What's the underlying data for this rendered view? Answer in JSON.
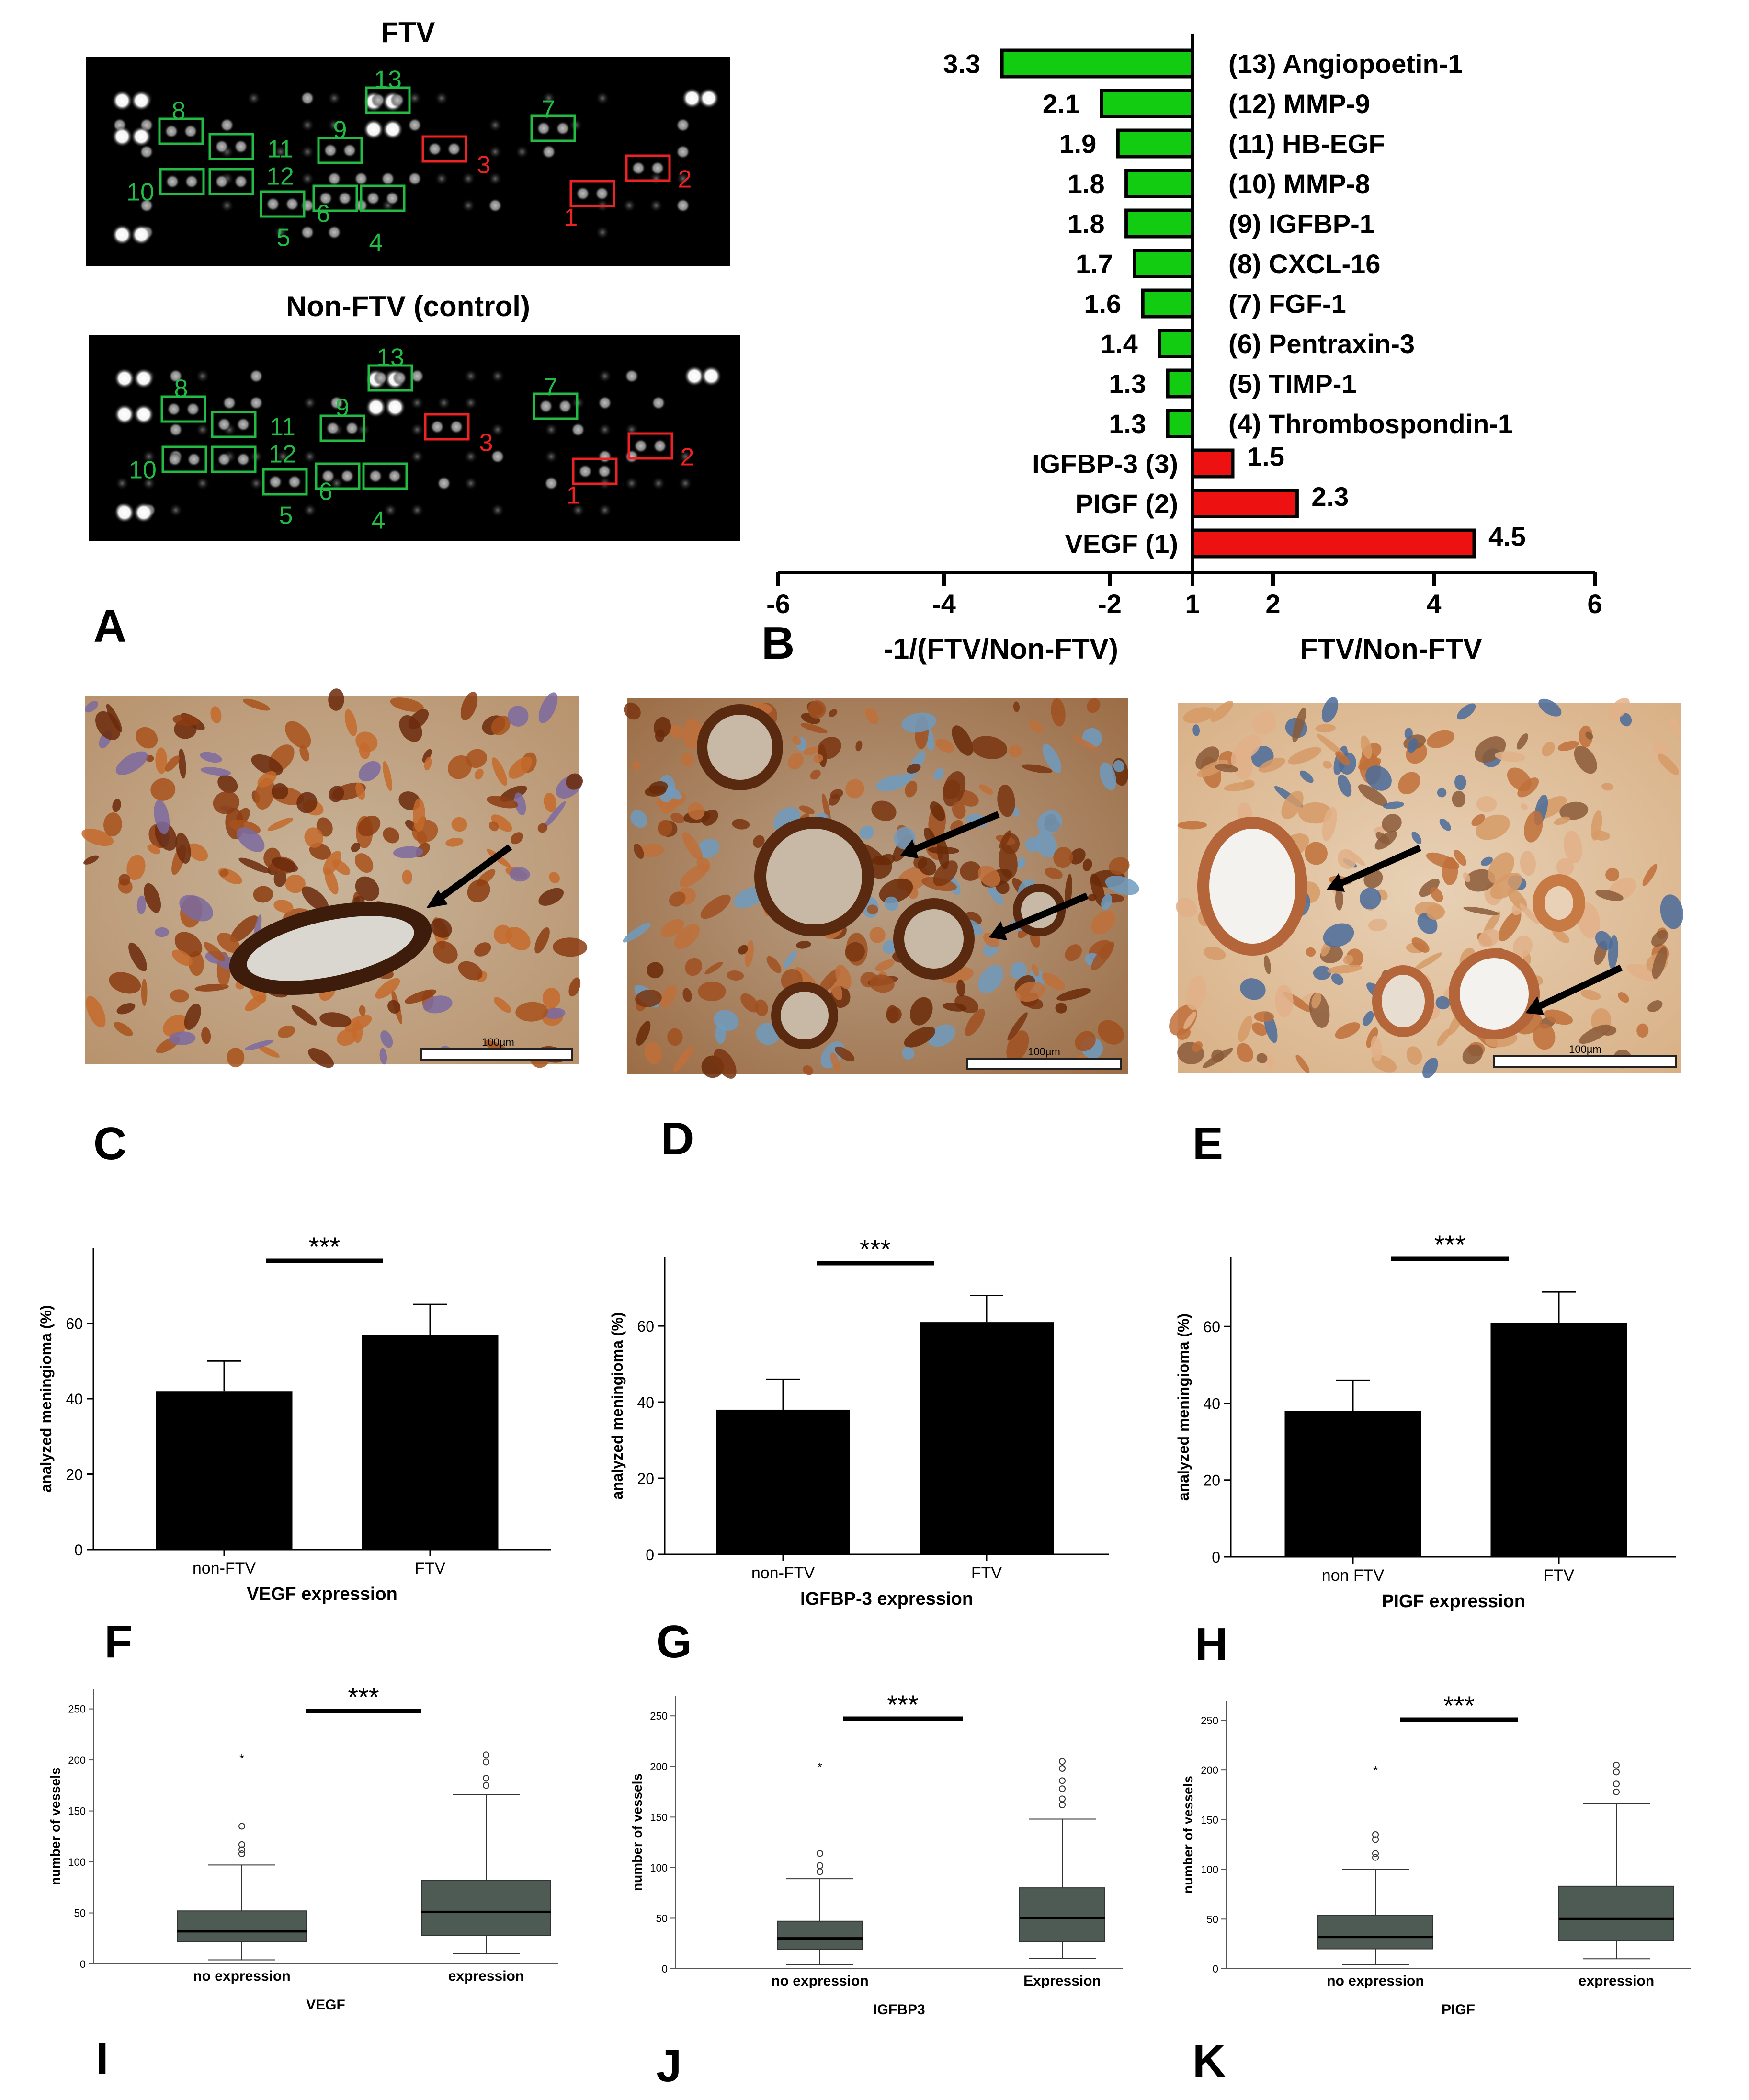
{
  "panels": {
    "a": {
      "letter": "A",
      "arrays": [
        {
          "title": "FTV"
        },
        {
          "title": "Non-FTV (control)"
        }
      ]
    },
    "b": {
      "letter": "B"
    },
    "c": {
      "letter": "C",
      "scale_label": "100µm"
    },
    "d": {
      "letter": "D",
      "scale_label": "100µm"
    },
    "e": {
      "letter": "E",
      "scale_label": "100µm"
    },
    "f": {
      "letter": "F"
    },
    "g": {
      "letter": "G"
    },
    "h": {
      "letter": "H"
    },
    "i": {
      "letter": "I"
    },
    "j": {
      "letter": "J"
    },
    "k": {
      "letter": "K"
    }
  },
  "significance": "***",
  "colors": {
    "increased": "#ee1111",
    "decreased": "#11cc11",
    "bar": "#000000",
    "box": "#4e5b54",
    "array_bg": "#000000",
    "spot_label_green": "#22bb44",
    "spot_label_red": "#ee2222"
  },
  "chart_data": [
    {
      "id": "A-FTV",
      "type": "table",
      "title": "FTV",
      "spot_labels": [
        {
          "label": "1",
          "color": "red"
        },
        {
          "label": "2",
          "color": "red"
        },
        {
          "label": "3",
          "color": "red"
        },
        {
          "label": "4",
          "color": "green"
        },
        {
          "label": "5",
          "color": "green"
        },
        {
          "label": "6",
          "color": "green"
        },
        {
          "label": "7",
          "color": "green"
        },
        {
          "label": "8",
          "color": "green"
        },
        {
          "label": "9",
          "color": "green"
        },
        {
          "label": "10",
          "color": "green"
        },
        {
          "label": "11",
          "color": "green"
        },
        {
          "label": "12",
          "color": "green"
        },
        {
          "label": "13",
          "color": "green"
        }
      ]
    },
    {
      "id": "A-NonFTV",
      "type": "table",
      "title": "Non-FTV (control)",
      "spot_labels": [
        {
          "label": "1",
          "color": "red"
        },
        {
          "label": "2",
          "color": "red"
        },
        {
          "label": "3",
          "color": "red"
        },
        {
          "label": "4",
          "color": "green"
        },
        {
          "label": "5",
          "color": "green"
        },
        {
          "label": "6",
          "color": "green"
        },
        {
          "label": "7",
          "color": "green"
        },
        {
          "label": "8",
          "color": "green"
        },
        {
          "label": "9",
          "color": "green"
        },
        {
          "label": "10",
          "color": "green"
        },
        {
          "label": "11",
          "color": "green"
        },
        {
          "label": "12",
          "color": "green"
        },
        {
          "label": "13",
          "color": "green"
        }
      ]
    },
    {
      "id": "B",
      "type": "bar",
      "orientation": "horizontal",
      "xlabel_left": "-1/(FTV/Non-FTV)",
      "xlabel_right": "FTV/Non-FTV",
      "xlim": [
        -6,
        6
      ],
      "xticks": [
        "-6",
        "-4",
        "-2",
        "1",
        "2",
        "4",
        "6"
      ],
      "bars": [
        {
          "label": "(13) Angiopoetin-1",
          "value": -3.3,
          "value_label": "3.3"
        },
        {
          "label": "(12) MMP-9",
          "value": -2.1,
          "value_label": "2.1"
        },
        {
          "label": "(11) HB-EGF",
          "value": -1.9,
          "value_label": "1.9"
        },
        {
          "label": "(10) MMP-8",
          "value": -1.8,
          "value_label": "1.8"
        },
        {
          "label": "(9) IGFBP-1",
          "value": -1.8,
          "value_label": "1.8"
        },
        {
          "label": "(8) CXCL-16",
          "value": -1.7,
          "value_label": "1.7"
        },
        {
          "label": "(7) FGF-1",
          "value": -1.6,
          "value_label": "1.6"
        },
        {
          "label": "(6) Pentraxin-3",
          "value": -1.4,
          "value_label": "1.4"
        },
        {
          "label": "(5) TIMP-1",
          "value": -1.3,
          "value_label": "1.3"
        },
        {
          "label": "(4) Thrombospondin-1",
          "value": -1.3,
          "value_label": "1.3"
        },
        {
          "label": "IGFBP-3 (3)",
          "value": 1.5,
          "value_label": "1.5"
        },
        {
          "label": "PIGF (2)",
          "value": 2.3,
          "value_label": "2.3"
        },
        {
          "label": "VEGF (1)",
          "value": 4.5,
          "value_label": "4.5"
        }
      ]
    },
    {
      "id": "F",
      "type": "bar",
      "categories": [
        "non-FTV",
        "FTV"
      ],
      "values": [
        42,
        57
      ],
      "errors": [
        8,
        8
      ],
      "xlabel": "VEGF expression",
      "ylabel": "analyzed meningioma (%)",
      "ylim": [
        0,
        80
      ],
      "yticks": [
        0,
        20,
        40,
        60
      ]
    },
    {
      "id": "G",
      "type": "bar",
      "categories": [
        "non-FTV",
        "FTV"
      ],
      "values": [
        38,
        61
      ],
      "errors": [
        8,
        7
      ],
      "xlabel": "IGFBP-3 expression",
      "ylabel": "analyzed meningioma (%)",
      "ylim": [
        0,
        78
      ],
      "yticks": [
        0,
        20,
        40,
        60
      ]
    },
    {
      "id": "H",
      "type": "bar",
      "categories": [
        "non FTV",
        "FTV"
      ],
      "values": [
        38,
        61
      ],
      "errors": [
        8,
        8
      ],
      "xlabel": "PIGF expression",
      "ylabel": "analyzed meningioma (%)",
      "ylim": [
        0,
        78
      ],
      "yticks": [
        0,
        20,
        40,
        60
      ]
    },
    {
      "id": "I",
      "type": "box",
      "categories": [
        "no expression",
        "expression"
      ],
      "xlabel": "VEGF",
      "ylabel": "number of vessels",
      "ylim": [
        0,
        270
      ],
      "yticks": [
        0,
        50,
        100,
        150,
        200,
        250
      ],
      "boxes": [
        {
          "whisker_low": 4,
          "q1": 22,
          "median": 32,
          "q3": 52,
          "whisker_high": 97,
          "outliers": [
            108,
            112,
            117,
            135
          ],
          "extremes": [
            202
          ]
        },
        {
          "whisker_low": 10,
          "q1": 28,
          "median": 51,
          "q3": 82,
          "whisker_high": 166,
          "outliers": [
            175,
            182,
            198,
            205
          ],
          "extremes": []
        }
      ]
    },
    {
      "id": "J",
      "type": "box",
      "categories": [
        "no expression",
        "Expression"
      ],
      "xlabel": "IGFBP3",
      "ylabel": "number of vessels",
      "ylim": [
        0,
        270
      ],
      "yticks": [
        0,
        50,
        100,
        150,
        200,
        250
      ],
      "boxes": [
        {
          "whisker_low": 4,
          "q1": 19,
          "median": 30,
          "q3": 47,
          "whisker_high": 89,
          "outliers": [
            96,
            102,
            114
          ],
          "extremes": [
            200
          ]
        },
        {
          "whisker_low": 10,
          "q1": 27,
          "median": 50,
          "q3": 80,
          "whisker_high": 148,
          "outliers": [
            162,
            168,
            178,
            186,
            198,
            205
          ],
          "extremes": []
        }
      ]
    },
    {
      "id": "K",
      "type": "box",
      "categories": [
        "no expression",
        "expression"
      ],
      "xlabel": "PIGF",
      "ylabel": "number of vessels",
      "ylim": [
        0,
        270
      ],
      "yticks": [
        0,
        50,
        100,
        150,
        200,
        250
      ],
      "boxes": [
        {
          "whisker_low": 4,
          "q1": 20,
          "median": 32,
          "q3": 54,
          "whisker_high": 100,
          "outliers": [
            112,
            116,
            130,
            135
          ],
          "extremes": [
            200
          ]
        },
        {
          "whisker_low": 10,
          "q1": 28,
          "median": 50,
          "q3": 83,
          "whisker_high": 166,
          "outliers": [
            178,
            186,
            198,
            205
          ],
          "extremes": []
        }
      ]
    }
  ]
}
